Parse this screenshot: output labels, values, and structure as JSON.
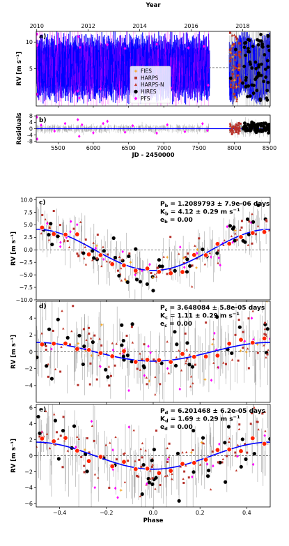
{
  "colors": {
    "fies": "#f5a623",
    "harps": "#b5302a",
    "harps_n": "#c0392b",
    "hires": "#000000",
    "pfs": "#ff00ff",
    "model": "#0000ff",
    "phase_bin": "#ff2200",
    "errbar": "#888888"
  },
  "chart_data": [
    {
      "panel": "a)",
      "type": "scatter",
      "top_xlabel": "Year",
      "top_ticks": [
        "2010",
        "2012",
        "2014",
        "2016",
        "2018"
      ],
      "top_tick_jd": [
        5197.5,
        5927.5,
        6657.5,
        7388.5,
        8118.5
      ],
      "ylabel": "RV [m s⁻¹]",
      "xlim": [
        5190,
        8510
      ],
      "ylim": [
        -2,
        12
      ],
      "yticks": [
        5,
        10
      ],
      "legend": [
        "FIES",
        "HARPS",
        "HARPS-N",
        "HIRES",
        "PFS"
      ],
      "legend_position": "lower center",
      "pfs_outliers": [
        [
          5200,
          11.5
        ],
        [
          5205,
          9.4
        ],
        [
          5790,
          11
        ],
        [
          5810,
          9
        ],
        [
          6200,
          9.5
        ],
        [
          6450,
          8.8
        ],
        [
          6900,
          9.6
        ],
        [
          7350,
          8.9
        ],
        [
          7570,
          9.2
        ],
        [
          5200,
          0.2
        ],
        [
          5780,
          0.8
        ],
        [
          5800,
          -0.5
        ],
        [
          6100,
          1.2
        ],
        [
          6600,
          0.8
        ],
        [
          7100,
          1.4
        ],
        [
          7630,
          1.9
        ]
      ],
      "hires_highlights": [
        [
          8360,
          10.2
        ],
        [
          8480,
          9.2
        ],
        [
          8020,
          8.6
        ],
        [
          8200,
          8.2
        ],
        [
          7950,
          3.2
        ],
        [
          8120,
          2.3
        ],
        [
          8300,
          3.0
        ]
      ]
    },
    {
      "panel": "b)",
      "type": "scatter",
      "ylabel": "Residuals",
      "xlabel": "JD - 2450000",
      "xlim": [
        5190,
        8510
      ],
      "ylim": [
        -8.5,
        8.5
      ],
      "yticks": [
        -8,
        -4,
        0,
        4,
        8
      ],
      "xticks": [
        5500,
        6000,
        6500,
        7000,
        7500,
        8000,
        8500
      ],
      "pfs_points": [
        [
          5200,
          7.2
        ],
        [
          5205,
          -6.5
        ],
        [
          5260,
          2.2
        ],
        [
          5450,
          -1.5
        ],
        [
          5600,
          3.2
        ],
        [
          5780,
          5.6
        ],
        [
          5800,
          -4.8
        ],
        [
          5840,
          2.4
        ],
        [
          6000,
          -2.6
        ],
        [
          6140,
          3.2
        ],
        [
          6200,
          4.6
        ],
        [
          6450,
          -2.2
        ],
        [
          6560,
          1.8
        ],
        [
          6900,
          -2.8
        ],
        [
          7050,
          2.4
        ],
        [
          7300,
          -1.9
        ],
        [
          7550,
          3.1
        ],
        [
          7620,
          -1.2
        ]
      ]
    },
    {
      "panel": "c)",
      "type": "scatter",
      "annotation": [
        "Pₐ = 1.2089793 ± 7.9e-06 days",
        "Kₐ = 4.12 ± 0.29 m s⁻¹",
        "eₐ = 0.00"
      ],
      "labels": {
        "p": "P",
        "k": "K",
        "e": "e",
        "sub": "b"
      },
      "p_text": " = 1.2089793 ± 7.9e-06 days",
      "k_text": " = 4.12 ± 0.29 m s",
      "e_text": " = 0.00",
      "ylabel": "RV [m s⁻¹]",
      "xlim": [
        -0.5,
        0.5
      ],
      "ylim": [
        -10,
        10.5
      ],
      "yticks": [
        -10,
        -7.5,
        -5,
        -2.5,
        0,
        2.5,
        5,
        7.5,
        10
      ],
      "ytick_labels": [
        "−10.0",
        "−7.5",
        "−5.0",
        "−2.5",
        "0.0",
        "2.5",
        "5.0",
        "7.5",
        "10.0"
      ],
      "K": 4.12,
      "phase_offset": 0.25
    },
    {
      "panel": "d)",
      "type": "scatter",
      "labels": {
        "p": "P",
        "k": "K",
        "e": "e",
        "sub": "c"
      },
      "p_text": " = 3.648084 ± 5.8e-05 days",
      "k_text": " = 1.11 ± 0.29 m s",
      "e_text": " = 0.00",
      "ylabel": "RV [m s⁻¹]",
      "xlim": [
        -0.5,
        0.5
      ],
      "ylim": [
        -6,
        6
      ],
      "yticks": [
        -4,
        -2,
        0,
        2,
        4
      ],
      "ytick_labels": [
        "−4",
        "−2",
        "0",
        "2",
        "4"
      ],
      "K": 1.11,
      "phase_offset": 0.25
    },
    {
      "panel": "e)",
      "type": "scatter",
      "labels": {
        "p": "P",
        "k": "K",
        "e": "e",
        "sub": "d"
      },
      "p_text": " = 6.201468 ± 6.2e-05 days",
      "k_text": " = 1.69 ± 0.29 m s",
      "e_text": " = 0.00",
      "ylabel": "RV [m s⁻¹]",
      "xlabel": "Phase",
      "xlim": [
        -0.5,
        0.5
      ],
      "ylim": [
        -6.4,
        6.4
      ],
      "yticks": [
        -6,
        -4,
        -2,
        0,
        2,
        4,
        6
      ],
      "ytick_labels": [
        "−6",
        "−4",
        "−2",
        "0",
        "2",
        "4",
        "6"
      ],
      "xticks": [
        -0.4,
        -0.2,
        0.0,
        0.2,
        0.4
      ],
      "xtick_labels": [
        "−0.4",
        "−0.2",
        "0.0",
        "0.2",
        "0.4"
      ],
      "K": 1.69,
      "phase_offset": 0.25
    }
  ]
}
